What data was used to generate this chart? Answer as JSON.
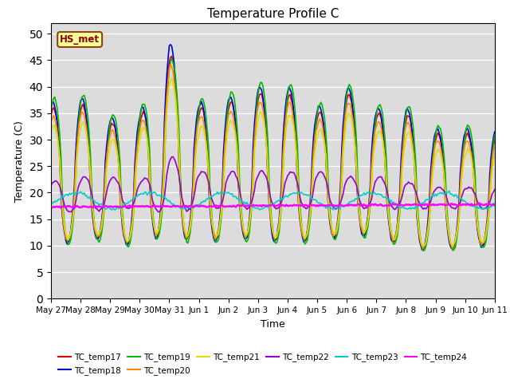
{
  "title": "Temperature Profile C",
  "xlabel": "Time",
  "ylabel": "Temperature (C)",
  "ylim": [
    0,
    52
  ],
  "annotation": "HS_met",
  "background_color": "#dcdcdc",
  "series_order": [
    "TC_temp17",
    "TC_temp18",
    "TC_temp19",
    "TC_temp20",
    "TC_temp21",
    "TC_temp22",
    "TC_temp23",
    "TC_temp24"
  ],
  "series": {
    "TC_temp17": {
      "color": "#dd0000",
      "lw": 1.2
    },
    "TC_temp18": {
      "color": "#0000dd",
      "lw": 1.2
    },
    "TC_temp19": {
      "color": "#00bb00",
      "lw": 1.2
    },
    "TC_temp20": {
      "color": "#ff8800",
      "lw": 1.2
    },
    "TC_temp21": {
      "color": "#dddd00",
      "lw": 1.2
    },
    "TC_temp22": {
      "color": "#9900cc",
      "lw": 1.2
    },
    "TC_temp23": {
      "color": "#00cccc",
      "lw": 1.2
    },
    "TC_temp24": {
      "color": "#ff00ff",
      "lw": 1.8
    }
  },
  "tick_labels": [
    "May 27",
    "May 28",
    "May 29",
    "May 30",
    "May 31",
    "Jun 1",
    "Jun 2",
    "Jun 3",
    "Jun 4",
    "Jun 5",
    "Jun 6",
    "Jun 7",
    "Jun 8",
    "Jun 9",
    "Jun 10",
    "Jun 11"
  ],
  "yticks": [
    0,
    5,
    10,
    15,
    20,
    25,
    30,
    35,
    40,
    45,
    50
  ]
}
